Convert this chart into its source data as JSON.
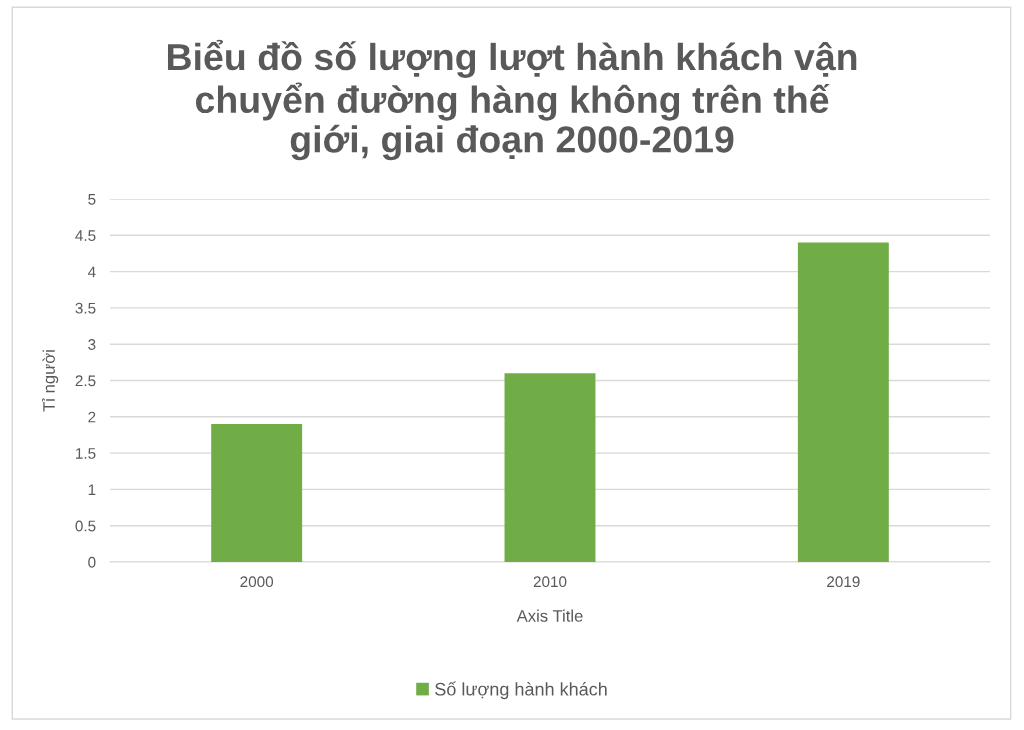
{
  "chart_data": {
    "type": "bar",
    "title": "Biểu đồ số lượng lượt hành khách vận\nchuyển đường hàng không trên thế\ngiới, giai đoạn 2000-2019",
    "xlabel": "Axis Title",
    "ylabel": "Tỉ người",
    "categories": [
      "2000",
      "2010",
      "2019"
    ],
    "series": [
      {
        "name": "Số lượng hành khách",
        "color": "#70ad47",
        "values": [
          1.9,
          2.6,
          4.4
        ]
      }
    ],
    "ylim": [
      0,
      5
    ],
    "yticks": [
      0,
      0.5,
      1,
      1.5,
      2,
      2.5,
      3,
      3.5,
      4,
      4.5,
      5
    ],
    "grid": "y",
    "legend": "bottom"
  }
}
